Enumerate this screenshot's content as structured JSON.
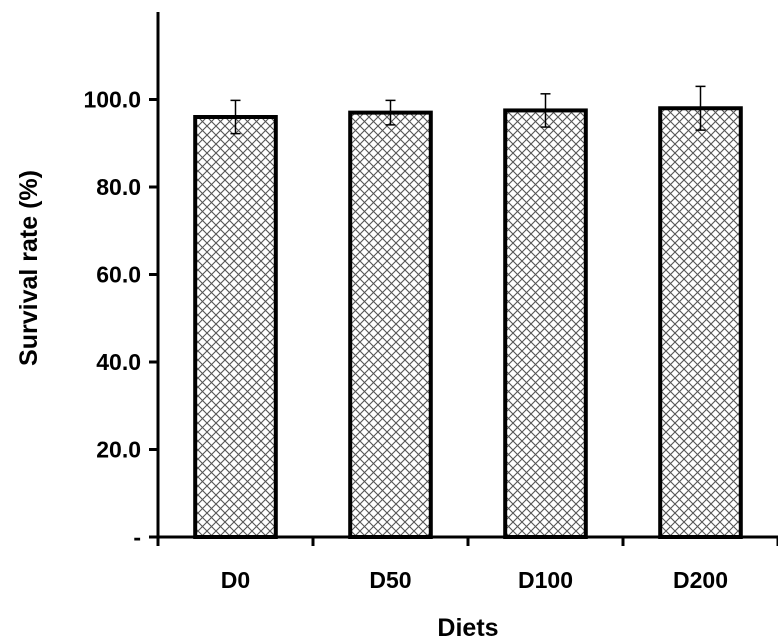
{
  "chart_data": {
    "type": "bar",
    "title": "",
    "xlabel": "Diets",
    "ylabel": "Survival rate (%)",
    "categories": [
      "D0",
      "D50",
      "D100",
      "D200"
    ],
    "values": [
      96.0,
      97.0,
      97.5,
      98.0
    ],
    "error": [
      3.8,
      2.8,
      3.8,
      5.0
    ],
    "ylim": [
      0,
      120
    ],
    "yticks": [
      0,
      20,
      40,
      60,
      80,
      100
    ],
    "ytick_labels": [
      "-",
      "20.0",
      "40.0",
      "60.0",
      "80.0",
      "100.0"
    ],
    "grid": false,
    "legend": "none",
    "bar_fill": "crosshatch",
    "colors": {
      "bar_stroke": "#000000",
      "hatch": "#555555",
      "background": "#ffffff"
    }
  }
}
